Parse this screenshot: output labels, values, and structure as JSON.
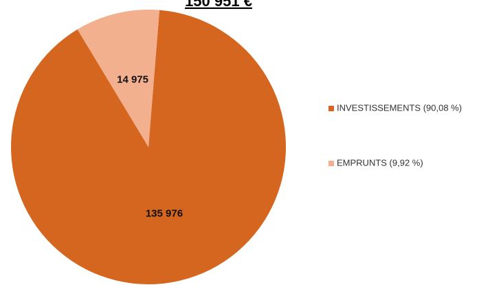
{
  "chart_data": {
    "type": "pie",
    "title": "150 951 €",
    "categories": [
      "INVESTISSEMENTS (90,08 %)",
      "EMPRUNTS (9,92 %)"
    ],
    "values": [
      135976,
      14975
    ],
    "value_labels": [
      "135 976",
      "14 975"
    ],
    "colors": [
      "#d5661f",
      "#f3b08f"
    ],
    "legend": "right"
  }
}
